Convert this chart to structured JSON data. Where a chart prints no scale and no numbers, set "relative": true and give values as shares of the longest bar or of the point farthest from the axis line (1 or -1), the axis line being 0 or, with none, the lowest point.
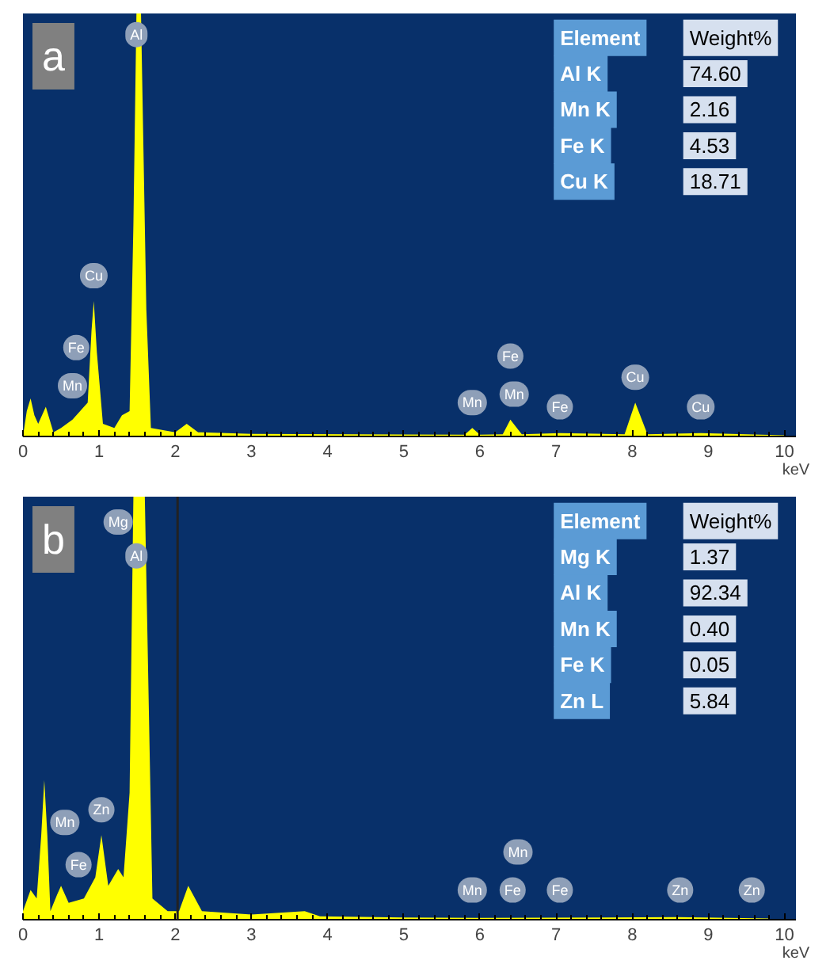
{
  "chart_data": [
    {
      "type": "area",
      "title": "a",
      "xlabel": "keV",
      "relative": true,
      "xlim": [
        0,
        10.15
      ],
      "xticks": [
        0,
        1,
        2,
        3,
        4,
        5,
        6,
        7,
        8,
        9,
        10
      ],
      "grid": false,
      "tick_labels": "x",
      "series": [
        {
          "color": "#ffff00",
          "x": [
            0,
            0.05,
            0.1,
            0.15,
            0.2,
            0.3,
            0.4,
            0.5,
            0.65,
            0.75,
            0.85,
            0.9,
            0.93,
            0.97,
            1.05,
            1.2,
            1.3,
            1.4,
            1.45,
            1.49,
            1.55,
            1.62,
            1.68,
            2.0,
            2.15,
            2.3,
            3,
            5.8,
            5.9,
            6.0,
            6.3,
            6.4,
            6.55,
            7.05,
            7.9,
            8.04,
            8.2,
            8.9,
            10
          ],
          "values": [
            0,
            0.06,
            0.09,
            0.05,
            0.03,
            0.07,
            0.01,
            0.02,
            0.04,
            0.06,
            0.08,
            0.25,
            0.32,
            0.2,
            0.03,
            0.02,
            0.05,
            0.06,
            0.5,
            1,
            1,
            0.3,
            0.02,
            0.01,
            0.03,
            0.01,
            0.006,
            0.004,
            0.02,
            0.004,
            0.005,
            0.04,
            0.005,
            0.008,
            0.005,
            0.08,
            0.005,
            0.008,
            0.003
          ]
        }
      ],
      "annotations": [
        {
          "text": "Al",
          "x": 1.49,
          "y": 0.95
        },
        {
          "text": "Cu",
          "x": 0.93,
          "y": 0.38
        },
        {
          "text": "Fe",
          "x": 0.7,
          "y": 0.21
        },
        {
          "text": "Mn",
          "x": 0.65,
          "y": 0.12
        },
        {
          "text": "Mn",
          "x": 5.9,
          "y": 0.08
        },
        {
          "text": "Fe",
          "x": 6.4,
          "y": 0.19
        },
        {
          "text": "Mn",
          "x": 6.45,
          "y": 0.1
        },
        {
          "text": "Fe",
          "x": 7.05,
          "y": 0.07
        },
        {
          "text": "Cu",
          "x": 8.04,
          "y": 0.14
        },
        {
          "text": "Cu",
          "x": 8.9,
          "y": 0.07
        },
        "Element",
        "Weight%",
        "Al K",
        "74.60",
        "Mn K",
        "2.16",
        "Fe K",
        "4.53",
        "Cu K",
        "18.71"
      ]
    },
    {
      "type": "area",
      "title": "b",
      "xlabel": "keV",
      "relative": true,
      "xlim": [
        0,
        10.15
      ],
      "xticks": [
        0,
        1,
        2,
        3,
        4,
        5,
        6,
        7,
        8,
        9,
        10
      ],
      "grid": false,
      "tick_labels": "x",
      "ref_lines": [
        {
          "axis": "x",
          "value": 2.03,
          "color": "#222222"
        }
      ],
      "series": [
        {
          "color": "#ffff00",
          "x": [
            0,
            0.1,
            0.18,
            0.24,
            0.28,
            0.32,
            0.36,
            0.45,
            0.5,
            0.6,
            0.8,
            0.95,
            1.03,
            1.12,
            1.25,
            1.32,
            1.4,
            1.45,
            1.6,
            1.7,
            1.9,
            2.05,
            2.17,
            2.35,
            3,
            3.7,
            3.9,
            5,
            6,
            8.6,
            9.8
          ],
          "values": [
            0.02,
            0.07,
            0.05,
            0.2,
            0.33,
            0.2,
            0.02,
            0.06,
            0.08,
            0.04,
            0.05,
            0.1,
            0.2,
            0.08,
            0.12,
            0.1,
            0.3,
            1,
            1,
            0.05,
            0.02,
            0.02,
            0.08,
            0.02,
            0.012,
            0.02,
            0.008,
            0.005,
            0.004,
            0.006,
            0.003
          ]
        }
      ],
      "annotations": [
        {
          "text": "Mg",
          "x": 1.25,
          "y": 0.94
        },
        {
          "text": "Al",
          "x": 1.49,
          "y": 0.86
        },
        {
          "text": "Mn",
          "x": 0.55,
          "y": 0.23
        },
        {
          "text": "Zn",
          "x": 1.03,
          "y": 0.26
        },
        {
          "text": "Fe",
          "x": 0.73,
          "y": 0.13
        },
        {
          "text": "Mn",
          "x": 5.9,
          "y": 0.07
        },
        {
          "text": "Mn",
          "x": 6.5,
          "y": 0.16
        },
        {
          "text": "Fe",
          "x": 6.43,
          "y": 0.07
        },
        {
          "text": "Fe",
          "x": 7.05,
          "y": 0.07
        },
        {
          "text": "Zn",
          "x": 8.63,
          "y": 0.07
        },
        {
          "text": "Zn",
          "x": 9.57,
          "y": 0.07
        },
        "Element",
        "Weight%",
        "Mg K",
        "1.37",
        "Al K",
        "92.34",
        "Mn K",
        "0.40",
        "Fe K",
        "0.05",
        "Zn L",
        "5.84"
      ]
    }
  ]
}
